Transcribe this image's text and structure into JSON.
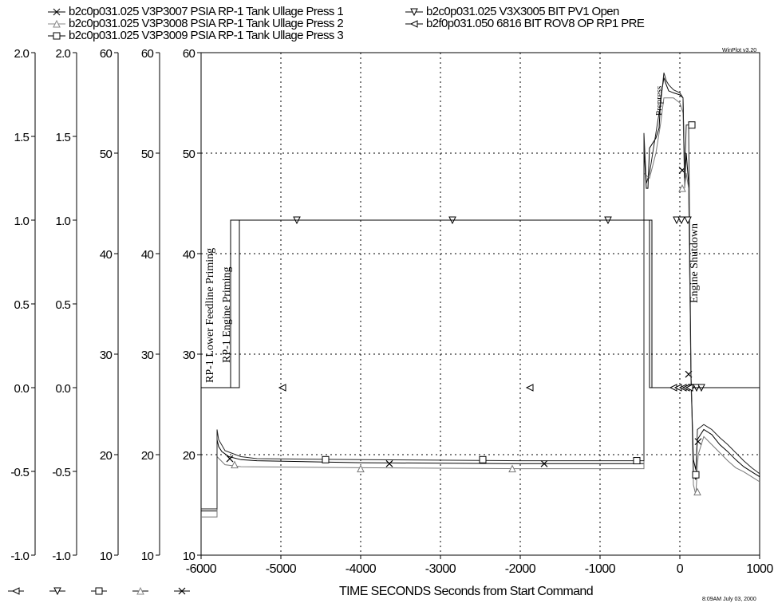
{
  "legend": [
    {
      "label": "b2c0p031.025  V3P3007 PSIA RP-1 Tank Ullage Press 1",
      "marker": "x"
    },
    {
      "label": "b2c0p031.025  V3P3008 PSIA RP-1 Tank Ullage Press 2",
      "marker": "triangle-up"
    },
    {
      "label": "b2c0p031.025  V3P3009 PSIA RP-1 Tank Ullage Press 3",
      "marker": "square"
    },
    {
      "label": "b2c0p031.025  V3X3005 BIT  PV1 Open",
      "marker": "triangle-down"
    },
    {
      "label": "b2f0p031.050  6816 BIT ROV8 OP RP1 PRE",
      "marker": "triangle-left"
    }
  ],
  "version_label": "WinPlot v3.20",
  "timestamp": "8:09AM  July 03, 2000",
  "chart_data": {
    "type": "line",
    "xlabel": "TIME SECONDS Seconds from Start Command",
    "xlim": [
      -6000,
      1000
    ],
    "x_ticks": [
      -6000,
      -5000,
      -4000,
      -3000,
      -2000,
      -1000,
      0,
      1000
    ],
    "x_tick_labels": [
      "-6000",
      "-5000",
      "-4000",
      "-3000",
      "-2000",
      "-1000",
      "0",
      "1000"
    ],
    "grid": true,
    "axes": [
      {
        "id": "bit2",
        "ylim": [
          -1.0,
          2.0
        ],
        "ticks": [
          "2.0",
          "1.5",
          "1.0",
          "0.5",
          "0.0",
          "-0.5",
          "-1.0"
        ],
        "marker": "triangle-left"
      },
      {
        "id": "bit1",
        "ylim": [
          -1.0,
          2.0
        ],
        "ticks": [
          "2.0",
          "1.5",
          "1.0",
          "0.5",
          "0.0",
          "-0.5",
          "-1.0"
        ],
        "marker": "triangle-down"
      },
      {
        "id": "press3",
        "ylim": [
          10,
          60
        ],
        "ticks": [
          "60",
          "50",
          "40",
          "30",
          "20",
          "10"
        ],
        "marker": "square"
      },
      {
        "id": "press2",
        "ylim": [
          10,
          60
        ],
        "ticks": [
          "60",
          "50",
          "40",
          "30",
          "20",
          "10"
        ],
        "marker": "triangle-up"
      },
      {
        "id": "press1",
        "ylim": [
          10,
          60
        ],
        "ticks": [
          "60",
          "50",
          "40",
          "30",
          "20",
          "10"
        ],
        "marker": "x"
      }
    ],
    "annotations": [
      {
        "text": "RP-1 Lower Feedline Priming",
        "x": -5850
      },
      {
        "text": "RP-1 Engine Priming",
        "x": -5640
      },
      {
        "text": "Prepress",
        "x": -230
      },
      {
        "text": "Engine Shutdown",
        "x": 220
      }
    ],
    "series": [
      {
        "axis": "press1",
        "marker": "x",
        "points": [
          [
            -6000,
            14.4
          ],
          [
            -5800,
            14.4
          ],
          [
            -5800,
            21.5
          ],
          [
            -5780,
            20.8
          ],
          [
            -5740,
            20.3
          ],
          [
            -5650,
            19.8
          ],
          [
            -5500,
            19.5
          ],
          [
            -5300,
            19.4
          ],
          [
            -4000,
            19.2
          ],
          [
            -2000,
            19.1
          ],
          [
            -450,
            19.1
          ],
          [
            -450,
            50.5
          ],
          [
            -420,
            46.5
          ],
          [
            -400,
            46.5
          ],
          [
            -380,
            50.5
          ],
          [
            -300,
            51.5
          ],
          [
            -260,
            52.5
          ],
          [
            -240,
            55.5
          ],
          [
            -200,
            57.5
          ],
          [
            -170,
            56.8
          ],
          [
            -140,
            56.2
          ],
          [
            -80,
            56
          ],
          [
            0,
            55.8
          ],
          [
            40,
            55.5
          ],
          [
            60,
            47
          ],
          [
            80,
            50
          ],
          [
            100,
            48
          ],
          [
            110,
            47
          ],
          [
            140,
            27.5
          ],
          [
            150,
            25
          ],
          [
            170,
            19.5
          ],
          [
            200,
            18.5
          ],
          [
            220,
            21.5
          ],
          [
            300,
            22.5
          ],
          [
            400,
            22
          ],
          [
            500,
            21
          ],
          [
            600,
            20.3
          ],
          [
            700,
            19.5
          ],
          [
            800,
            18.8
          ],
          [
            900,
            18.3
          ],
          [
            1000,
            17.8
          ]
        ],
        "markers": [
          [
            -5640,
            19.6
          ],
          [
            -3640,
            19.1
          ],
          [
            -1700,
            19.1
          ],
          [
            30,
            48.3
          ],
          [
            110,
            28
          ],
          [
            230,
            21.3
          ]
        ]
      },
      {
        "axis": "press2",
        "marker": "triangle-up",
        "points": [
          [
            -6000,
            13.8
          ],
          [
            -5800,
            13.8
          ],
          [
            -5800,
            19.8
          ],
          [
            -5700,
            19
          ],
          [
            -5500,
            18.8
          ],
          [
            -4000,
            18.7
          ],
          [
            -2000,
            18.6
          ],
          [
            -450,
            18.6
          ],
          [
            -450,
            48
          ],
          [
            -380,
            47.5
          ],
          [
            -300,
            50
          ],
          [
            -240,
            53
          ],
          [
            -200,
            55.5
          ],
          [
            -170,
            55.5
          ],
          [
            -80,
            55.5
          ],
          [
            0,
            55
          ],
          [
            40,
            54
          ],
          [
            60,
            46.5
          ],
          [
            80,
            48
          ],
          [
            110,
            46.5
          ],
          [
            140,
            27
          ],
          [
            150,
            24.5
          ],
          [
            170,
            17
          ],
          [
            200,
            16
          ],
          [
            230,
            20
          ],
          [
            300,
            21.8
          ],
          [
            400,
            21
          ],
          [
            500,
            20.2
          ],
          [
            600,
            19.4
          ],
          [
            700,
            18.7
          ],
          [
            800,
            18.3
          ],
          [
            900,
            17.8
          ],
          [
            1000,
            17.3
          ]
        ],
        "markers": [
          [
            -5580,
            19
          ],
          [
            -4000,
            18.6
          ],
          [
            -2100,
            18.6
          ],
          [
            30,
            46.5
          ],
          [
            220,
            16.3
          ]
        ]
      },
      {
        "axis": "press3",
        "marker": "square",
        "points": [
          [
            -6000,
            14.6
          ],
          [
            -5800,
            14.6
          ],
          [
            -5800,
            22.5
          ],
          [
            -5780,
            21.5
          ],
          [
            -5700,
            20.4
          ],
          [
            -5500,
            19.8
          ],
          [
            -5300,
            19.6
          ],
          [
            -4000,
            19.5
          ],
          [
            -2000,
            19.4
          ],
          [
            -450,
            19.4
          ],
          [
            -450,
            52
          ],
          [
            -420,
            47
          ],
          [
            -380,
            48
          ],
          [
            -300,
            52
          ],
          [
            -240,
            55
          ],
          [
            -200,
            58
          ],
          [
            -170,
            57.2
          ],
          [
            -140,
            56.8
          ],
          [
            -80,
            56.3
          ],
          [
            0,
            56
          ],
          [
            40,
            55.5
          ],
          [
            60,
            47.5
          ],
          [
            80,
            52.8
          ],
          [
            110,
            52.8
          ],
          [
            140,
            28
          ],
          [
            150,
            25.2
          ],
          [
            170,
            18
          ],
          [
            200,
            17.5
          ],
          [
            220,
            22.5
          ],
          [
            300,
            23
          ],
          [
            400,
            22.5
          ],
          [
            500,
            21.7
          ],
          [
            600,
            21
          ],
          [
            700,
            20.2
          ],
          [
            800,
            19.4
          ],
          [
            900,
            18.7
          ],
          [
            1000,
            18.1
          ]
        ],
        "markers": [
          [
            -4440,
            19.5
          ],
          [
            -2470,
            19.5
          ],
          [
            -540,
            19.4
          ],
          [
            150,
            52.8
          ],
          [
            200,
            18
          ]
        ]
      },
      {
        "axis": "bit1",
        "marker": "triangle-down",
        "points": [
          [
            -6000,
            0
          ],
          [
            -5630,
            0
          ],
          [
            -5630,
            1.0
          ],
          [
            -380,
            1.0
          ],
          [
            -380,
            0
          ],
          [
            1000,
            0
          ]
        ],
        "markers": [
          [
            -4800,
            1.0
          ],
          [
            -2850,
            1.0
          ],
          [
            -900,
            1.0
          ],
          [
            -40,
            1.0
          ],
          [
            20,
            1.0
          ],
          [
            100,
            1.0
          ],
          [
            150,
            0
          ],
          [
            210,
            0
          ],
          [
            270,
            0
          ]
        ]
      },
      {
        "axis": "bit2",
        "marker": "triangle-left",
        "points": [
          [
            -6000,
            0
          ],
          [
            -5520,
            0
          ],
          [
            -5520,
            1.0
          ],
          [
            -350,
            1.0
          ],
          [
            -350,
            0
          ],
          [
            1000,
            0
          ]
        ],
        "markers": [
          [
            -4980,
            0
          ],
          [
            -1880,
            0
          ],
          [
            -80,
            0
          ],
          [
            -20,
            0
          ],
          [
            40,
            0
          ],
          [
            80,
            0
          ],
          [
            120,
            0
          ]
        ]
      }
    ]
  }
}
